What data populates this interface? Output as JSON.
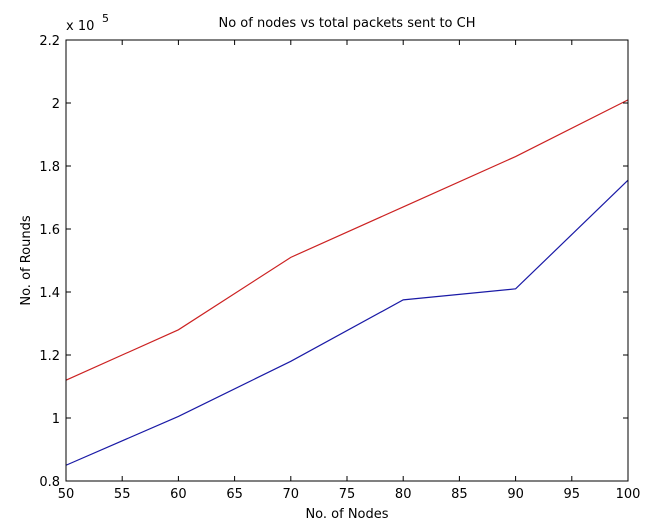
{
  "chart_data": {
    "type": "line",
    "title": "No of nodes vs total packets sent to CH",
    "xlabel": "No. of Nodes",
    "ylabel": "No. of Rounds",
    "y_multiplier_label": "x 10",
    "y_multiplier_exponent": "5",
    "xlim": [
      50,
      100
    ],
    "ylim": [
      0.8,
      2.2
    ],
    "x_ticks": [
      "50",
      "55",
      "60",
      "65",
      "70",
      "75",
      "80",
      "85",
      "90",
      "95",
      "100"
    ],
    "y_ticks": [
      "0.8",
      "1",
      "1.2",
      "1.4",
      "1.6",
      "1.8",
      "2",
      "2.2"
    ],
    "grid": false,
    "x": [
      50,
      60,
      70,
      80,
      90,
      100
    ],
    "series": [
      {
        "color": "#cc2222",
        "values": [
          1.12,
          1.28,
          1.51,
          1.67,
          1.83,
          2.01
        ]
      },
      {
        "color": "#1a1aa6",
        "values": [
          0.85,
          1.005,
          1.18,
          1.375,
          1.41,
          1.755
        ]
      }
    ]
  }
}
